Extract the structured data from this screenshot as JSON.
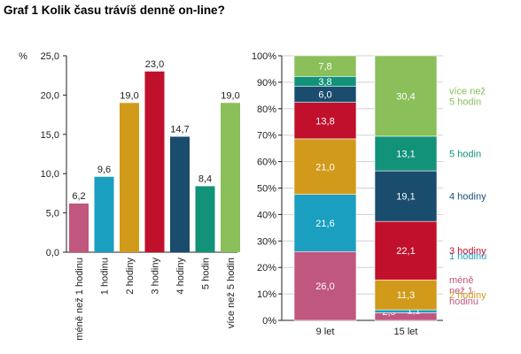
{
  "title": "Graf 1 Kolik času trávíš denně on-line?",
  "colors": {
    "c0": "#c0577f",
    "c1": "#1a9fc0",
    "c2": "#d29a1a",
    "c3": "#c0102c",
    "c4": "#1a4c6e",
    "c5": "#13927a",
    "c6": "#8abf5a",
    "grid": "#d0d0d0",
    "axis": "#222222"
  },
  "chart_data": [
    {
      "type": "bar",
      "unit_label": "%",
      "categories": [
        "méně než 1 hodinu",
        "1 hodinu",
        "2 hodiny",
        "3 hodiny",
        "4 hodiny",
        "5 hodin",
        "více než 5 hodin"
      ],
      "values": [
        6.2,
        9.6,
        19.0,
        23.0,
        14.7,
        8.4,
        19.0
      ],
      "value_labels": [
        "6,2",
        "9,6",
        "19,0",
        "23,0",
        "14,7",
        "8,4",
        "19,0"
      ],
      "ylim": [
        0,
        25
      ],
      "yticks": [
        "0,0",
        "5,0",
        "10,0",
        "15,0",
        "20,0",
        "25,0"
      ],
      "grid": false
    },
    {
      "type": "bar",
      "stacked": true,
      "percent": true,
      "categories": [
        "9 let",
        "15 let"
      ],
      "series": [
        {
          "name": "méně než 1 hodinu",
          "label_lines": [
            "méně",
            "než 1",
            "hodinu"
          ],
          "values": [
            26.0,
            2.9
          ],
          "value_labels": [
            "26,0",
            "2,9"
          ]
        },
        {
          "name": "1 hodinu",
          "label_lines": [
            "1 hodinu"
          ],
          "values": [
            21.6,
            1.1
          ],
          "value_labels": [
            "21,6",
            "1,1"
          ]
        },
        {
          "name": "2 hodiny",
          "label_lines": [
            "2 hodiny"
          ],
          "values": [
            21.0,
            11.3
          ],
          "value_labels": [
            "21,0",
            "11,3"
          ]
        },
        {
          "name": "3 hodiny",
          "label_lines": [
            "3 hodiny"
          ],
          "values": [
            13.8,
            22.1
          ],
          "value_labels": [
            "13,8",
            "22,1"
          ]
        },
        {
          "name": "4 hodiny",
          "label_lines": [
            "4 hodiny"
          ],
          "values": [
            6.0,
            19.1
          ],
          "value_labels": [
            "6,0",
            "19,1"
          ]
        },
        {
          "name": "5 hodin",
          "label_lines": [
            "5 hodin"
          ],
          "values": [
            3.8,
            13.1
          ],
          "value_labels": [
            "3,8",
            "13,1"
          ]
        },
        {
          "name": "více než 5 hodin",
          "label_lines": [
            "více než",
            "5 hodin"
          ],
          "values": [
            7.8,
            30.4
          ],
          "value_labels": [
            "7,8",
            "30,4"
          ]
        }
      ],
      "ylim": [
        0,
        100
      ],
      "yticks": [
        "0%",
        "10%",
        "20%",
        "30%",
        "40%",
        "50%",
        "60%",
        "70%",
        "80%",
        "90%",
        "100%"
      ],
      "grid": true,
      "legend": "right"
    }
  ]
}
